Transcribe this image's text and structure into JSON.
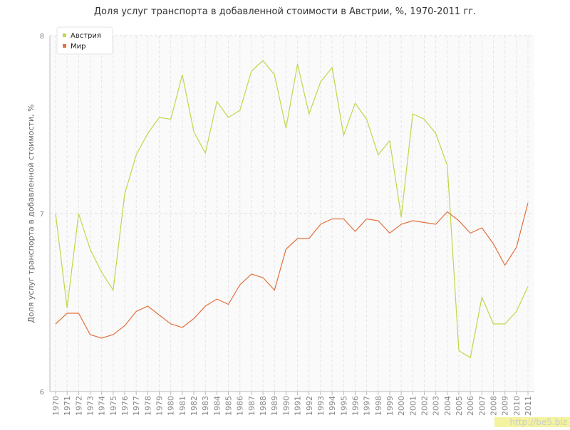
{
  "chart_data": {
    "type": "line",
    "title": "Доля услуг транспорта в добавленной стоимости в Австрии, %, 1970-2011 гг.",
    "y_label": "Доля услуг транспорта в добавленной стоимости, %",
    "watermark": "http://be5.biz",
    "categories": [
      "1970",
      "1971",
      "1972",
      "1973",
      "1974",
      "1975",
      "1976",
      "1977",
      "1978",
      "1979",
      "1980",
      "1981",
      "1982",
      "1983",
      "1984",
      "1985",
      "1986",
      "1987",
      "1988",
      "1989",
      "1990",
      "1991",
      "1992",
      "1993",
      "1994",
      "1995",
      "1996",
      "1997",
      "1998",
      "1999",
      "2000",
      "2001",
      "2002",
      "2003",
      "2004",
      "2005",
      "2006",
      "2007",
      "2008",
      "2009",
      "2010",
      "2011"
    ],
    "series": [
      {
        "name": "Австрия",
        "color": "#bcd94a",
        "values": [
          7.0,
          6.47,
          7.0,
          6.8,
          6.67,
          6.57,
          7.11,
          7.33,
          7.45,
          7.54,
          7.53,
          7.78,
          7.46,
          7.34,
          7.63,
          7.54,
          7.58,
          7.8,
          7.86,
          7.78,
          7.48,
          7.84,
          7.56,
          7.74,
          7.82,
          7.44,
          7.62,
          7.53,
          7.33,
          7.41,
          6.98,
          7.56,
          7.53,
          7.45,
          7.27,
          6.23,
          6.19,
          6.53,
          6.38,
          6.38,
          6.45,
          6.59
        ]
      },
      {
        "name": "Мир",
        "color": "#e0703c",
        "values": [
          6.38,
          6.44,
          6.44,
          6.32,
          6.3,
          6.32,
          6.37,
          6.45,
          6.48,
          6.43,
          6.38,
          6.36,
          6.41,
          6.48,
          6.52,
          6.49,
          6.6,
          6.66,
          6.64,
          6.57,
          6.8,
          6.86,
          6.86,
          6.94,
          6.97,
          6.97,
          6.9,
          6.97,
          6.96,
          6.89,
          6.94,
          6.96,
          6.95,
          6.94,
          7.01,
          6.96,
          6.89,
          6.92,
          6.83,
          6.71,
          6.81,
          7.06
        ]
      }
    ],
    "ylim": [
      6,
      8
    ],
    "yticks": [
      6,
      7,
      8
    ],
    "grid": true,
    "legend": "top-left"
  }
}
